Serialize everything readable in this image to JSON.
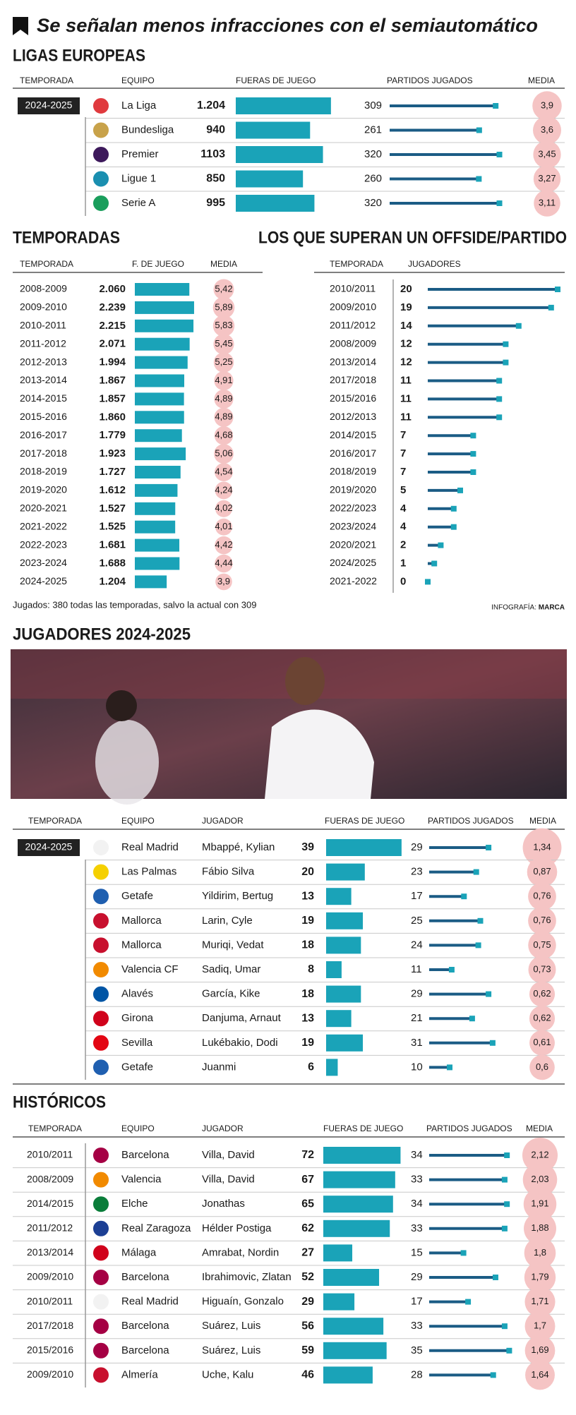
{
  "header": {
    "title": "Se señalan menos infracciones con el semiautomático"
  },
  "ligas": {
    "title": "LIGAS EUROPEAS",
    "columns": [
      "TEMPORADA",
      "EQUIPO",
      "FUERAS DE JUEGO",
      "PARTIDOS JUGADOS",
      "MEDIA"
    ],
    "season": "2024-2025",
    "rows": [
      {
        "team": "La Liga",
        "offsides": {
          "value": 1204,
          "label": "1.204"
        },
        "matches": 309,
        "average": {
          "value": 3.9,
          "label": "3,9"
        }
      },
      {
        "team": "Bundesliga",
        "offsides": 940,
        "matches": 261,
        "average": {
          "value": 3.6,
          "label": "3,6"
        }
      },
      {
        "team": "Premier",
        "offsides": 1103,
        "matches": 320,
        "average": {
          "value": 3.45,
          "label": "3,45"
        }
      },
      {
        "team": "Ligue 1",
        "offsides": 850,
        "matches": 260,
        "average": {
          "value": 3.27,
          "label": "3,27"
        }
      },
      {
        "team": "Serie A",
        "offsides": 995,
        "matches": 320,
        "average": {
          "value": 3.11,
          "label": "3,11"
        }
      }
    ]
  },
  "temporadas": {
    "title": "TEMPORADAS",
    "columns": [
      "TEMPORADA",
      "F. DE JUEGO",
      "MEDIA"
    ],
    "rows": [
      {
        "season": "2008-2009",
        "offsides": {
          "value": 2060,
          "label": "2.060"
        },
        "average": {
          "value": 5.42,
          "label": "5,42"
        }
      },
      {
        "season": "2009-2010",
        "offsides": {
          "value": 2239,
          "label": "2.239"
        },
        "average": {
          "value": 5.89,
          "label": "5,89"
        }
      },
      {
        "season": "2010-2011",
        "offsides": {
          "value": 2215,
          "label": "2.215"
        },
        "average": {
          "value": 5.83,
          "label": "5,83"
        }
      },
      {
        "season": "2011-2012",
        "offsides": {
          "value": 2071,
          "label": "2.071"
        },
        "average": {
          "value": 5.45,
          "label": "5,45"
        }
      },
      {
        "season": "2012-2013",
        "offsides": {
          "value": 1994,
          "label": "1.994"
        },
        "average": {
          "value": 5.25,
          "label": "5,25"
        }
      },
      {
        "season": "2013-2014",
        "offsides": {
          "value": 1867,
          "label": "1.867"
        },
        "average": {
          "value": 4.91,
          "label": "4,91"
        }
      },
      {
        "season": "2014-2015",
        "offsides": {
          "value": 1857,
          "label": "1.857"
        },
        "average": {
          "value": 4.89,
          "label": "4,89"
        }
      },
      {
        "season": "2015-2016",
        "offsides": {
          "value": 1860,
          "label": "1.860"
        },
        "average": {
          "value": 4.89,
          "label": "4,89"
        }
      },
      {
        "season": "2016-2017",
        "offsides": {
          "value": 1779,
          "label": "1.779"
        },
        "average": {
          "value": 4.68,
          "label": "4,68"
        }
      },
      {
        "season": "2017-2018",
        "offsides": {
          "value": 1923,
          "label": "1.923"
        },
        "average": {
          "value": 5.06,
          "label": "5,06"
        }
      },
      {
        "season": "2018-2019",
        "offsides": {
          "value": 1727,
          "label": "1.727"
        },
        "average": {
          "value": 4.54,
          "label": "4,54"
        }
      },
      {
        "season": "2019-2020",
        "offsides": {
          "value": 1612,
          "label": "1.612"
        },
        "average": {
          "value": 4.24,
          "label": "4,24"
        }
      },
      {
        "season": "2020-2021",
        "offsides": {
          "value": 1527,
          "label": "1.527"
        },
        "average": {
          "value": 4.02,
          "label": "4,02"
        }
      },
      {
        "season": "2021-2022",
        "offsides": {
          "value": 1525,
          "label": "1.525"
        },
        "average": {
          "value": 4.01,
          "label": "4,01"
        }
      },
      {
        "season": "2022-2023",
        "offsides": {
          "value": 1681,
          "label": "1.681"
        },
        "average": {
          "value": 4.42,
          "label": "4,42"
        }
      },
      {
        "season": "2023-2024",
        "offsides": {
          "value": 1688,
          "label": "1.688"
        },
        "average": {
          "value": 4.44,
          "label": "4,44"
        }
      },
      {
        "season": "2024-2025",
        "offsides": {
          "value": 1204,
          "label": "1.204"
        },
        "average": {
          "value": 3.9,
          "label": "3,9"
        }
      }
    ],
    "note": "Jugados: 380 todas las temporadas, salvo la actual con 309"
  },
  "superan": {
    "title": "LOS QUE SUPERAN UN OFFSIDE/PARTIDO",
    "columns": [
      "TEMPORADA",
      "JUGADORES"
    ],
    "rows": [
      {
        "season": "2010/2011",
        "players": 20
      },
      {
        "season": "2009/2010",
        "players": 19
      },
      {
        "season": "2011/2012",
        "players": 14
      },
      {
        "season": "2008/2009",
        "players": 12
      },
      {
        "season": "2013/2014",
        "players": 12
      },
      {
        "season": "2017/2018",
        "players": 11
      },
      {
        "season": "2015/2016",
        "players": 11
      },
      {
        "season": "2012/2013",
        "players": 11
      },
      {
        "season": "2014/2015",
        "players": 7
      },
      {
        "season": "2016/2017",
        "players": 7
      },
      {
        "season": "2018/2019",
        "players": 7
      },
      {
        "season": "2019/2020",
        "players": 5
      },
      {
        "season": "2022/2023",
        "players": 4
      },
      {
        "season": "2023/2024",
        "players": 4
      },
      {
        "season": "2020/2021",
        "players": 2
      },
      {
        "season": "2024/2025",
        "players": 1
      },
      {
        "season": "2021-2022",
        "players": 0
      }
    ],
    "credit_label": "INFOGRAFÍA:",
    "credit": "MARCA"
  },
  "jugadores": {
    "title": "JUGADORES 2024-2025",
    "columns": [
      "TEMPORADA",
      "EQUIPO",
      "JUGADOR",
      "FUERAS DE JUEGO",
      "PARTIDOS JUGADOS",
      "MEDIA"
    ],
    "season": "2024-2025",
    "rows": [
      {
        "team": "Real Madrid",
        "player": "Mbappé, Kylian",
        "offsides": 39,
        "matches": 29,
        "average": {
          "value": 1.34,
          "label": "1,34"
        }
      },
      {
        "team": "Las Palmas",
        "player": "Fábio Silva",
        "offsides": 20,
        "matches": 23,
        "average": {
          "value": 0.87,
          "label": "0,87"
        }
      },
      {
        "team": "Getafe",
        "player": "Yildirim, Bertug",
        "offsides": 13,
        "matches": 17,
        "average": {
          "value": 0.76,
          "label": "0,76"
        }
      },
      {
        "team": "Mallorca",
        "player": "Larin, Cyle",
        "offsides": 19,
        "matches": 25,
        "average": {
          "value": 0.76,
          "label": "0,76"
        }
      },
      {
        "team": "Mallorca",
        "player": "Muriqi, Vedat",
        "offsides": 18,
        "matches": 24,
        "average": {
          "value": 0.75,
          "label": "0,75"
        }
      },
      {
        "team": "Valencia CF",
        "player": "Sadiq, Umar",
        "offsides": 8,
        "matches": 11,
        "average": {
          "value": 0.73,
          "label": "0,73"
        }
      },
      {
        "team": "Alavés",
        "player": "García, Kike",
        "offsides": 18,
        "matches": 29,
        "average": {
          "value": 0.62,
          "label": "0,62"
        }
      },
      {
        "team": "Girona",
        "player": "Danjuma, Arnaut",
        "offsides": 13,
        "matches": 21,
        "average": {
          "value": 0.62,
          "label": "0,62"
        }
      },
      {
        "team": "Sevilla",
        "player": "Lukébakio, Dodi",
        "offsides": 19,
        "matches": 31,
        "average": {
          "value": 0.61,
          "label": "0,61"
        }
      },
      {
        "team": "Getafe",
        "player": "Juanmi",
        "offsides": 6,
        "matches": 10,
        "average": {
          "value": 0.6,
          "label": "0,6"
        }
      }
    ]
  },
  "historicos": {
    "title": "HISTÓRICOS",
    "columns": [
      "TEMPORADA",
      "EQUIPO",
      "JUGADOR",
      "FUERAS DE JUEGO",
      "PARTIDOS JUGADOS",
      "MEDIA"
    ],
    "rows": [
      {
        "season": "2010/2011",
        "team": "Barcelona",
        "player": "Villa, David",
        "offsides": 72,
        "matches": 34,
        "average": {
          "value": 2.12,
          "label": "2,12"
        }
      },
      {
        "season": "2008/2009",
        "team": "Valencia",
        "player": "Villa, David",
        "offsides": 67,
        "matches": 33,
        "average": {
          "value": 2.03,
          "label": "2,03"
        }
      },
      {
        "season": "2014/2015",
        "team": "Elche",
        "player": "Jonathas",
        "offsides": 65,
        "matches": 34,
        "average": {
          "value": 1.91,
          "label": "1,91"
        }
      },
      {
        "season": "2011/2012",
        "team": "Real Zaragoza",
        "player": "Hélder Postiga",
        "offsides": 62,
        "matches": 33,
        "average": {
          "value": 1.88,
          "label": "1,88"
        }
      },
      {
        "season": "2013/2014",
        "team": "Málaga",
        "player": "Amrabat, Nordin",
        "offsides": 27,
        "matches": 15,
        "average": {
          "value": 1.8,
          "label": "1,8"
        }
      },
      {
        "season": "2009/2010",
        "team": "Barcelona",
        "player": "Ibrahimovic, Zlatan",
        "offsides": 52,
        "matches": 29,
        "average": {
          "value": 1.79,
          "label": "1,79"
        }
      },
      {
        "season": "2010/2011",
        "team": "Real Madrid",
        "player": "Higuaín, Gonzalo",
        "offsides": 29,
        "matches": 17,
        "average": {
          "value": 1.71,
          "label": "1,71"
        }
      },
      {
        "season": "2017/2018",
        "team": "Barcelona",
        "player": "Suárez, Luis",
        "offsides": 56,
        "matches": 33,
        "average": {
          "value": 1.7,
          "label": "1,7"
        }
      },
      {
        "season": "2015/2016",
        "team": "Barcelona",
        "player": "Suárez, Luis",
        "offsides": 59,
        "matches": 35,
        "average": {
          "value": 1.69,
          "label": "1,69"
        }
      },
      {
        "season": "2009/2010",
        "team": "Almería",
        "player": "Uche, Kalu",
        "offsides": 46,
        "matches": 28,
        "average": {
          "value": 1.64,
          "label": "1,64"
        }
      }
    ]
  }
}
